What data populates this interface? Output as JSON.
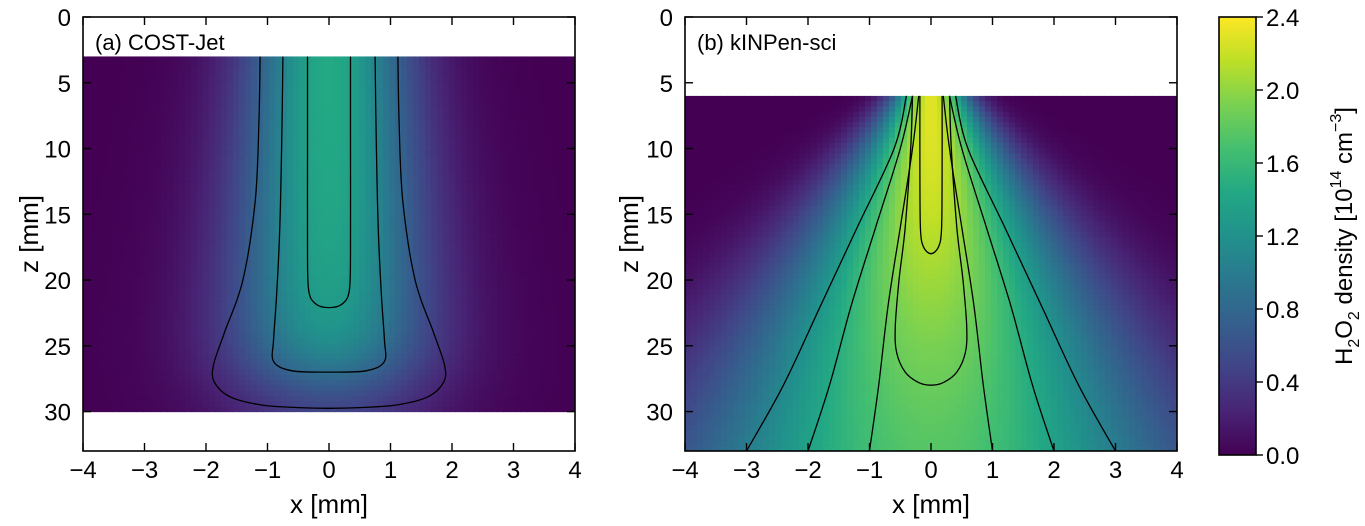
{
  "chart_data": [
    {
      "type": "heatmap",
      "panel_label": "(a) COST-Jet",
      "xlabel": "x [mm]",
      "ylabel": "z [mm]",
      "xlim": [
        -4,
        4
      ],
      "ylim": [
        33,
        0
      ],
      "xticks": [
        -4,
        -3,
        -2,
        -1,
        0,
        1,
        2,
        3,
        4
      ],
      "yticks": [
        0,
        5,
        10,
        15,
        20,
        25,
        30
      ],
      "data_region_z": [
        3,
        30
      ],
      "peak_density": 1.45,
      "contours": [
        {
          "x": [
            -1.12,
            -1.14,
            -1.2,
            -1.4,
            -1.7,
            -1.88,
            -1.86,
            -1.6,
            -1.1,
            -0.5,
            0,
            0.5,
            1.1,
            1.6,
            1.86,
            1.88,
            1.7,
            1.4,
            1.2,
            1.14,
            1.12
          ],
          "z": [
            3,
            8,
            14,
            20,
            24,
            26.5,
            27.8,
            28.9,
            29.5,
            29.7,
            29.75,
            29.7,
            29.5,
            28.9,
            27.8,
            26.5,
            24,
            20,
            14,
            8,
            3
          ]
        },
        {
          "x": [
            -0.75,
            -0.77,
            -0.8,
            -0.85,
            -0.9,
            -0.9,
            -0.6,
            0,
            0.6,
            0.9,
            0.9,
            0.85,
            0.8,
            0.77,
            0.75
          ],
          "z": [
            3,
            10,
            16,
            21,
            24.5,
            26.2,
            26.9,
            27,
            26.9,
            26.2,
            24.5,
            21,
            16,
            10,
            3
          ]
        },
        {
          "x": [
            -0.35,
            -0.35,
            -0.35,
            -0.33,
            -0.22,
            0,
            0.22,
            0.33,
            0.35,
            0.35,
            0.35
          ],
          "z": [
            3,
            10,
            18,
            20.8,
            21.8,
            22.1,
            21.8,
            20.8,
            18,
            10,
            3
          ]
        }
      ]
    },
    {
      "type": "heatmap",
      "panel_label": "(b) kINPen-sci",
      "xlabel": "x [mm]",
      "ylabel": "z [mm]",
      "xlim": [
        -4,
        4
      ],
      "ylim": [
        33,
        0
      ],
      "xticks": [
        -4,
        -3,
        -2,
        -1,
        0,
        1,
        2,
        3,
        4
      ],
      "yticks": [
        0,
        5,
        10,
        15,
        20,
        25,
        30
      ],
      "data_region_z": [
        6,
        33
      ],
      "peak_density": 2.3,
      "contours": [
        {
          "x": [
            -0.4,
            -0.6,
            -1.2,
            -1.8,
            -2.4,
            -3.0
          ],
          "z": [
            6,
            10,
            16,
            22,
            28,
            33
          ]
        },
        {
          "x": [
            0.4,
            0.6,
            1.2,
            1.8,
            2.4,
            3.0
          ],
          "z": [
            6,
            10,
            16,
            22,
            28,
            33
          ]
        },
        {
          "x": [
            -0.3,
            -0.5,
            -0.9,
            -1.3,
            -1.65,
            -2.0
          ],
          "z": [
            6,
            10,
            16,
            22,
            28,
            33
          ]
        },
        {
          "x": [
            0.3,
            0.5,
            0.9,
            1.3,
            1.65,
            2.0
          ],
          "z": [
            6,
            10,
            16,
            22,
            28,
            33
          ]
        },
        {
          "x": [
            -0.2,
            -0.3,
            -0.5,
            -0.7,
            -0.85,
            -1.0
          ],
          "z": [
            6,
            10,
            16,
            22,
            28,
            33
          ]
        },
        {
          "x": [
            0.2,
            0.3,
            0.5,
            0.7,
            0.85,
            1.0
          ],
          "z": [
            6,
            10,
            16,
            22,
            28,
            33
          ]
        },
        {
          "x": [
            -0.3,
            -0.33,
            -0.42,
            -0.52,
            -0.58,
            -0.56,
            -0.42,
            -0.2,
            0,
            0.2,
            0.42,
            0.56,
            0.58,
            0.52,
            0.42,
            0.33,
            0.3
          ],
          "z": [
            6,
            10,
            16,
            20,
            23.5,
            25.5,
            27,
            27.8,
            28,
            27.8,
            27,
            25.5,
            23.5,
            20,
            16,
            10,
            6
          ]
        },
        {
          "x": [
            -0.18,
            -0.18,
            -0.17,
            -0.12,
            0,
            0.12,
            0.17,
            0.18,
            0.18
          ],
          "z": [
            6,
            12,
            16.2,
            17.5,
            18,
            17.5,
            16.2,
            12,
            6
          ]
        }
      ]
    }
  ],
  "colorbar": {
    "label_parts": [
      "H",
      "2",
      "O",
      "2",
      " density [10",
      "14",
      " cm",
      "−3",
      "]"
    ],
    "ticks": [
      "0.0",
      "0.4",
      "0.8",
      "1.2",
      "1.6",
      "2.0",
      "2.4"
    ],
    "range": [
      0,
      2.4
    ],
    "colormap": "viridis"
  }
}
